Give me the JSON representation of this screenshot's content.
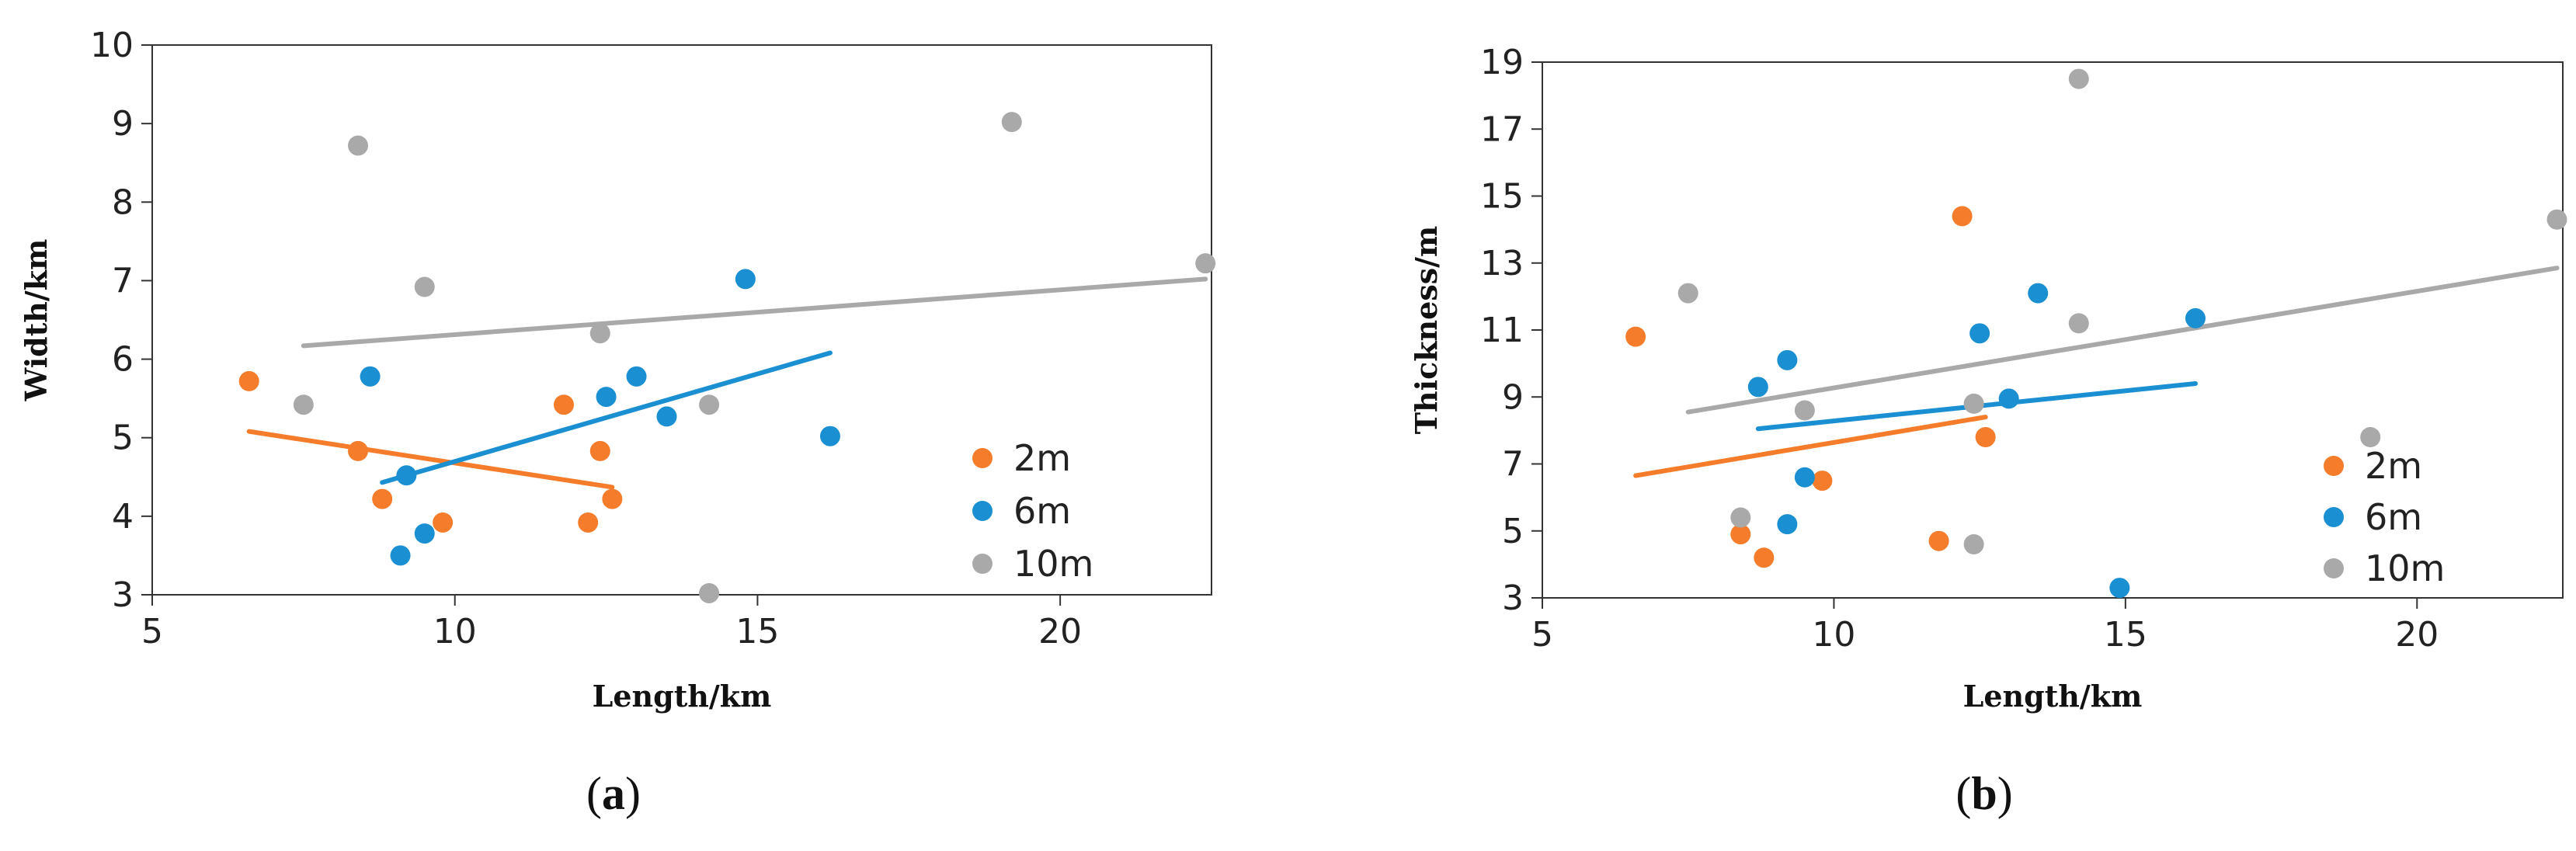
{
  "chart_data": [
    {
      "type": "scatter",
      "caption": "a",
      "xlabel": "Length/km",
      "ylabel": "Width/km",
      "xlim": [
        5,
        22.5
      ],
      "ylim": [
        3,
        10
      ],
      "xticks": [
        5,
        10,
        15,
        20
      ],
      "yticks": [
        3,
        4,
        5,
        6,
        7,
        8,
        9,
        10
      ],
      "grid": false,
      "legend_position": "bottom-right",
      "series": [
        {
          "name": "2m",
          "color": "#f47c2a",
          "points": [
            [
              6.6,
              5.72
            ],
            [
              8.4,
              4.83
            ],
            [
              8.8,
              4.22
            ],
            [
              9.8,
              3.92
            ],
            [
              11.8,
              5.42
            ],
            [
              12.2,
              3.92
            ],
            [
              12.4,
              4.83
            ],
            [
              12.6,
              4.22
            ]
          ],
          "trend": [
            [
              6.6,
              5.08
            ],
            [
              12.6,
              4.37
            ]
          ]
        },
        {
          "name": "6m",
          "color": "#1a8fd1",
          "points": [
            [
              8.6,
              5.78
            ],
            [
              9.1,
              3.5
            ],
            [
              9.2,
              4.52
            ],
            [
              9.5,
              3.78
            ],
            [
              12.5,
              5.52
            ],
            [
              13.0,
              5.78
            ],
            [
              13.5,
              5.27
            ],
            [
              14.8,
              7.02
            ],
            [
              16.2,
              5.02
            ]
          ],
          "trend": [
            [
              8.8,
              4.43
            ],
            [
              16.2,
              6.08
            ]
          ]
        },
        {
          "name": "10m",
          "color": "#a9a9a9",
          "points": [
            [
              7.5,
              5.42
            ],
            [
              8.4,
              8.72
            ],
            [
              9.5,
              6.92
            ],
            [
              12.4,
              6.33
            ],
            [
              14.2,
              5.42
            ],
            [
              14.2,
              3.02
            ],
            [
              19.2,
              9.02
            ],
            [
              22.4,
              7.22
            ]
          ],
          "trend": [
            [
              7.5,
              6.17
            ],
            [
              22.4,
              7.02
            ]
          ]
        }
      ]
    },
    {
      "type": "scatter",
      "caption": "b",
      "xlabel": "Length/km",
      "ylabel": "Thickness/m",
      "xlim": [
        5,
        22.5
      ],
      "ylim": [
        3,
        19
      ],
      "xticks": [
        5,
        10,
        15,
        20
      ],
      "yticks": [
        3,
        5,
        7,
        9,
        11,
        13,
        15,
        17,
        19
      ],
      "grid": false,
      "legend_position": "bottom-right",
      "series": [
        {
          "name": "2m",
          "color": "#f47c2a",
          "points": [
            [
              6.6,
              10.8
            ],
            [
              8.4,
              4.9
            ],
            [
              8.8,
              4.2
            ],
            [
              9.8,
              6.5
            ],
            [
              11.8,
              4.7
            ],
            [
              12.2,
              14.4
            ],
            [
              12.6,
              7.8
            ]
          ],
          "trend": [
            [
              6.6,
              6.65
            ],
            [
              12.6,
              8.4
            ]
          ]
        },
        {
          "name": "6m",
          "color": "#1a8fd1",
          "points": [
            [
              8.7,
              9.3
            ],
            [
              9.2,
              10.1
            ],
            [
              9.2,
              5.2
            ],
            [
              9.5,
              6.6
            ],
            [
              12.5,
              10.9
            ],
            [
              13.0,
              8.95
            ],
            [
              13.5,
              12.1
            ],
            [
              14.9,
              3.3
            ],
            [
              16.2,
              11.35
            ]
          ],
          "trend": [
            [
              8.7,
              8.05
            ],
            [
              16.2,
              9.4
            ]
          ]
        },
        {
          "name": "10m",
          "color": "#a9a9a9",
          "points": [
            [
              7.5,
              12.1
            ],
            [
              8.4,
              5.4
            ],
            [
              9.5,
              8.6
            ],
            [
              12.4,
              4.6
            ],
            [
              12.4,
              8.8
            ],
            [
              14.2,
              18.5
            ],
            [
              14.2,
              11.2
            ],
            [
              19.2,
              7.8
            ],
            [
              22.4,
              14.3
            ]
          ],
          "trend": [
            [
              7.5,
              8.55
            ],
            [
              22.4,
              12.85
            ]
          ]
        }
      ]
    }
  ]
}
